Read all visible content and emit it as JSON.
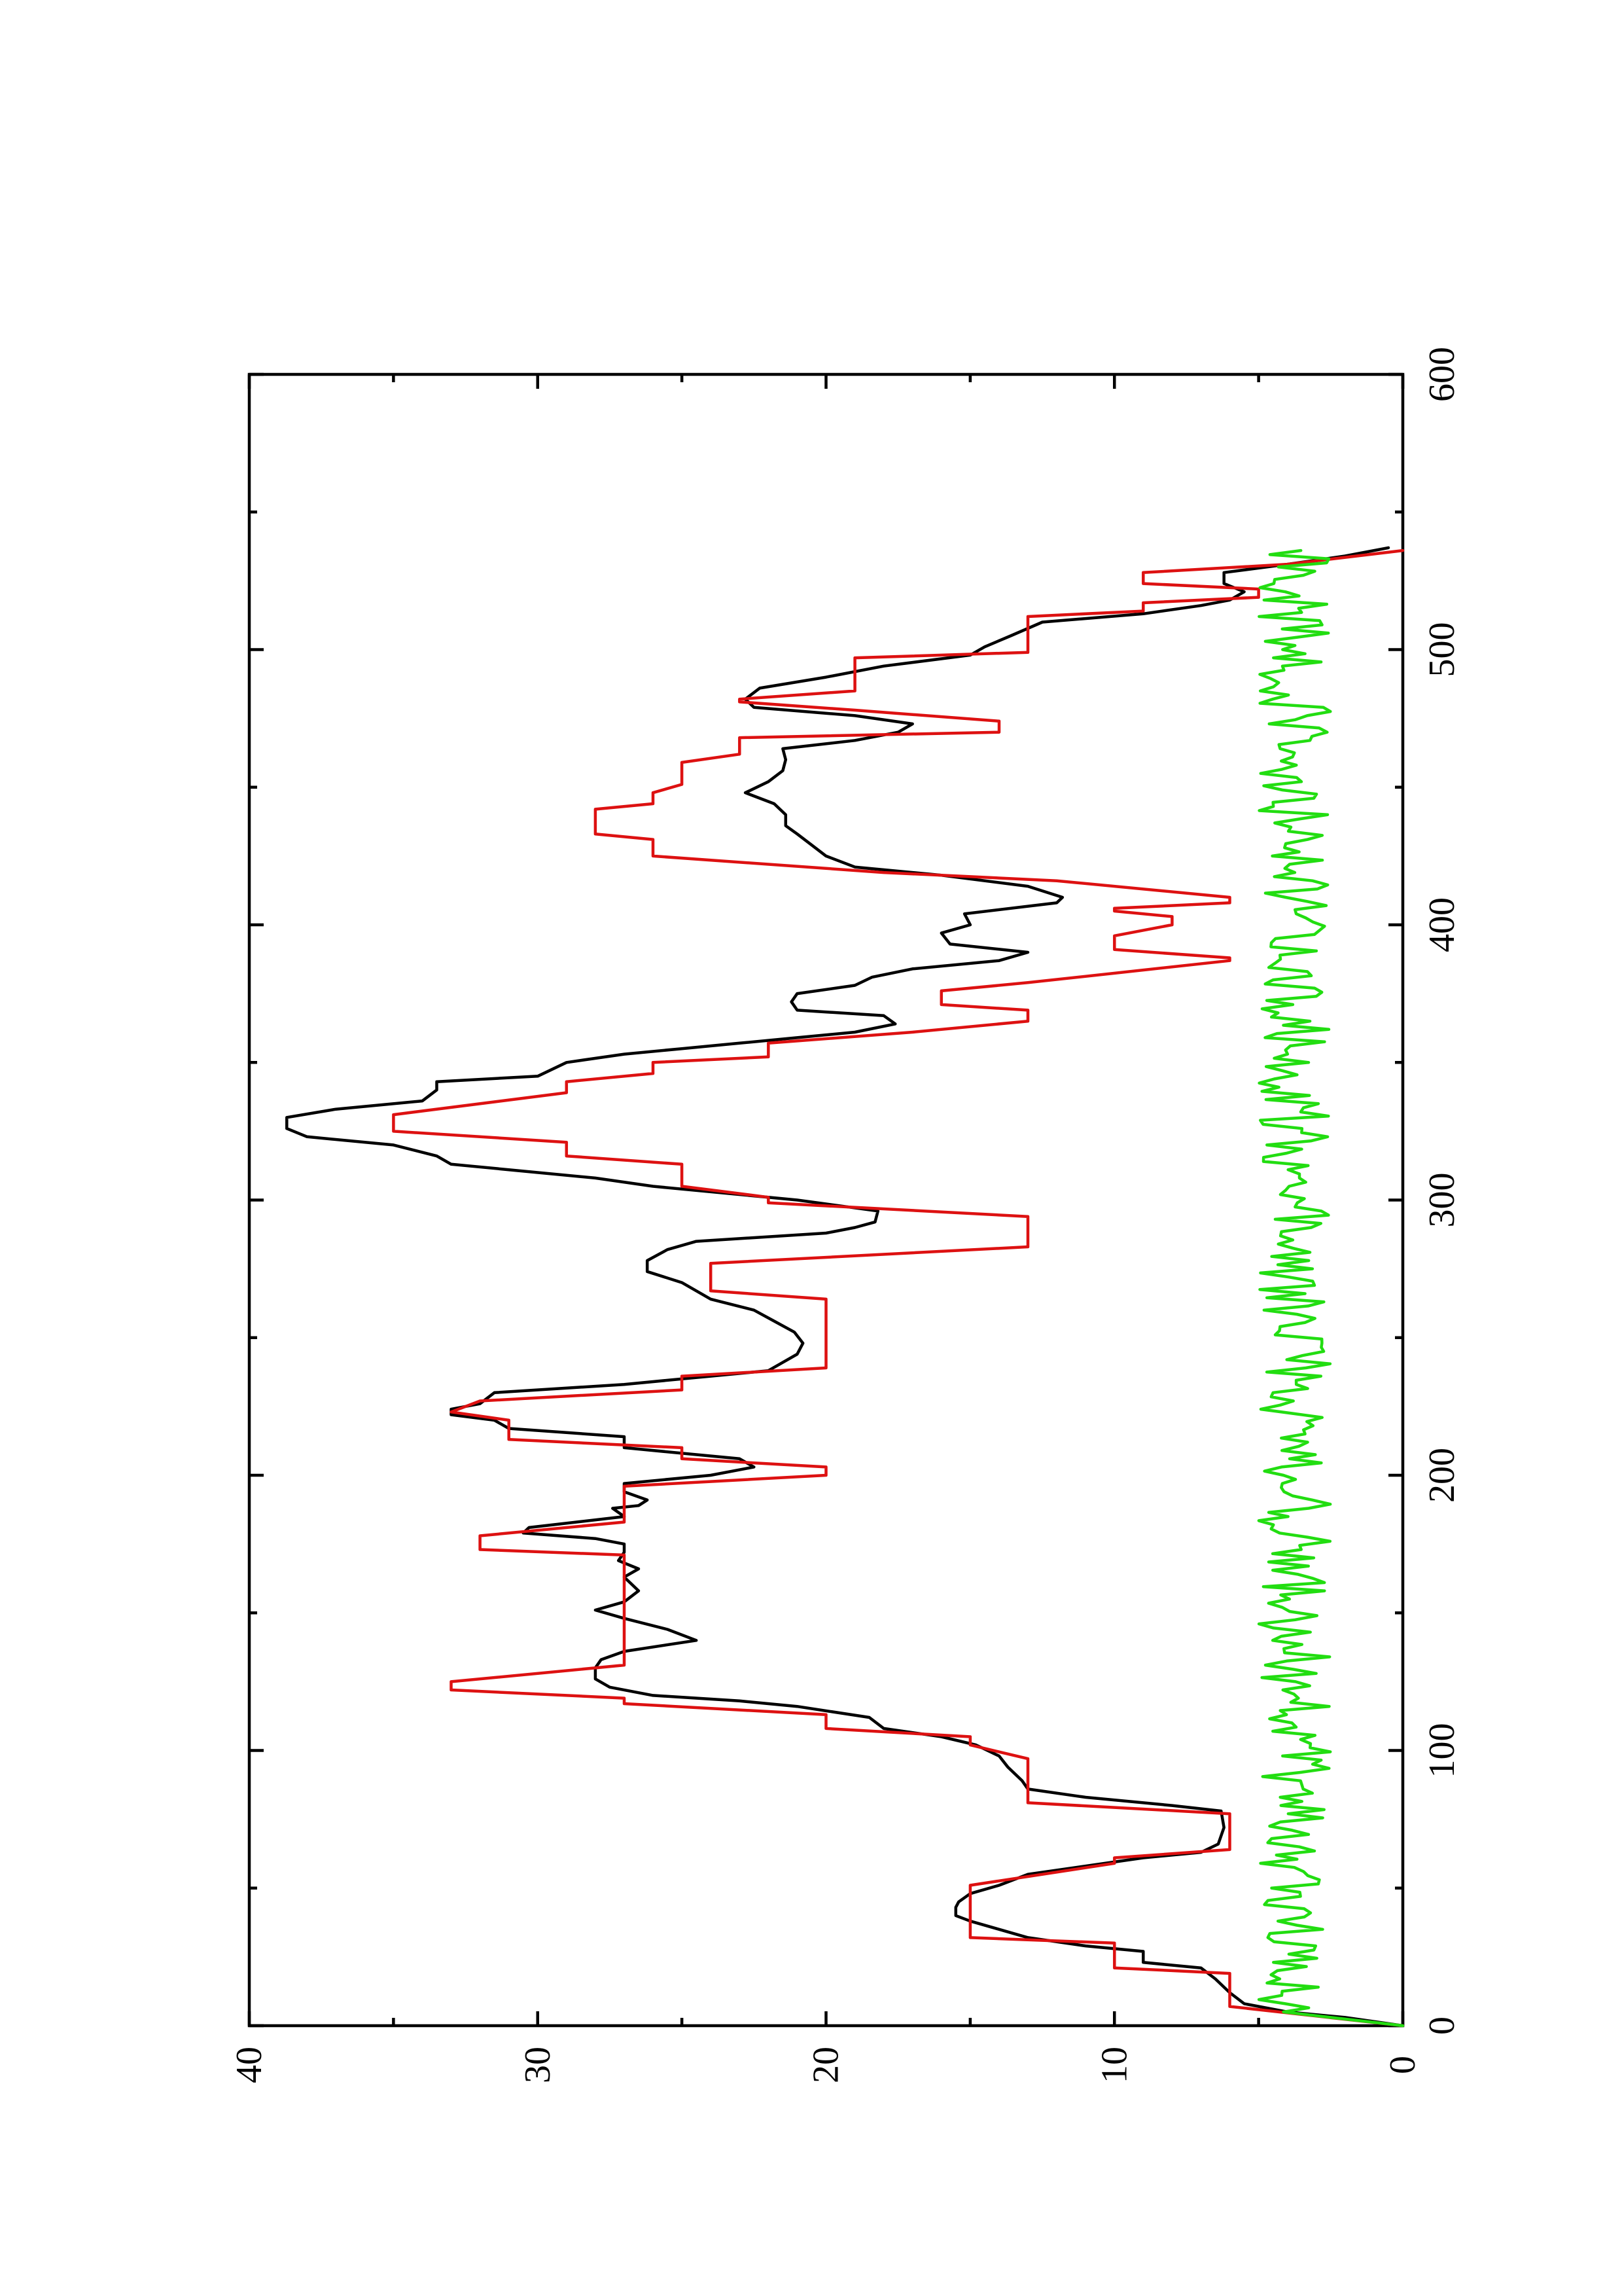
{
  "chart_data": {
    "type": "line",
    "orientation": "rotated-90-ccw",
    "xlim": [
      0,
      600
    ],
    "ylim": [
      0,
      40
    ],
    "x_ticks": [
      "0",
      "100",
      "200",
      "300",
      "400",
      "500",
      "600"
    ],
    "x_minor_ticks": [
      50,
      150,
      250,
      350,
      450,
      550
    ],
    "y_ticks": [
      "0",
      "10",
      "20",
      "30",
      "40"
    ],
    "y_minor_ticks": [
      5,
      15,
      25,
      35
    ],
    "grid": false,
    "series": [
      {
        "color": "#000000",
        "points": [
          [
            0,
            0
          ],
          [
            3,
            2
          ],
          [
            5,
            4
          ],
          [
            8,
            5.5
          ],
          [
            12,
            6
          ],
          [
            17,
            6.5
          ],
          [
            21,
            7
          ],
          [
            23,
            9
          ],
          [
            27,
            9
          ],
          [
            29,
            11
          ],
          [
            32,
            13
          ],
          [
            35,
            14
          ],
          [
            38,
            15
          ],
          [
            40,
            15.5
          ],
          [
            43,
            15.5
          ],
          [
            45,
            15.4
          ],
          [
            48,
            15
          ],
          [
            51,
            14
          ],
          [
            55,
            13
          ],
          [
            58,
            11
          ],
          [
            61,
            9
          ],
          [
            63,
            7
          ],
          [
            66,
            6.4
          ],
          [
            72,
            6.2
          ],
          [
            78,
            6.3
          ],
          [
            80,
            8
          ],
          [
            83,
            11
          ],
          [
            86,
            13
          ],
          [
            89,
            13.2
          ],
          [
            94,
            13.7
          ],
          [
            98,
            14
          ],
          [
            102,
            14.8
          ],
          [
            105,
            16
          ],
          [
            108,
            18
          ],
          [
            112,
            18.5
          ],
          [
            116,
            21
          ],
          [
            118,
            23
          ],
          [
            120,
            26
          ],
          [
            123,
            27.5
          ],
          [
            126,
            28
          ],
          [
            130,
            28
          ],
          [
            133,
            27.8
          ],
          [
            136,
            27
          ],
          [
            140,
            24.5
          ],
          [
            144,
            25.5
          ],
          [
            148,
            27
          ],
          [
            151,
            28
          ],
          [
            154,
            27
          ],
          [
            158,
            26.5
          ],
          [
            163,
            27
          ],
          [
            166,
            26.5
          ],
          [
            169,
            27.2
          ],
          [
            172,
            27
          ],
          [
            175,
            27
          ],
          [
            177,
            28
          ],
          [
            179,
            30.5
          ],
          [
            181,
            30.3
          ],
          [
            185,
            27
          ],
          [
            188,
            27.4
          ],
          [
            189,
            26.5
          ],
          [
            191,
            26.2
          ],
          [
            194,
            27
          ],
          [
            197,
            27
          ],
          [
            200,
            24
          ],
          [
            203,
            22.5
          ],
          [
            206,
            23
          ],
          [
            210,
            27
          ],
          [
            214,
            27
          ],
          [
            217,
            31
          ],
          [
            220,
            31.5
          ],
          [
            222,
            33
          ],
          [
            224,
            33
          ],
          [
            226,
            32
          ],
          [
            230,
            31.5
          ],
          [
            233,
            27
          ],
          [
            236,
            24
          ],
          [
            238,
            22
          ],
          [
            241,
            21.5
          ],
          [
            244,
            21
          ],
          [
            248,
            20.8
          ],
          [
            252,
            21.1
          ],
          [
            256,
            21.8
          ],
          [
            260,
            22.5
          ],
          [
            264,
            24
          ],
          [
            270,
            25
          ],
          [
            274,
            26.2
          ],
          [
            278,
            26.2
          ],
          [
            282,
            25.5
          ],
          [
            285,
            24.5
          ],
          [
            288,
            20
          ],
          [
            290,
            19
          ],
          [
            292,
            18.3
          ],
          [
            296,
            18.2
          ],
          [
            300,
            21
          ],
          [
            305,
            26
          ],
          [
            308,
            28
          ],
          [
            311,
            31
          ],
          [
            313,
            33
          ],
          [
            316,
            33.5
          ],
          [
            320,
            35
          ],
          [
            323,
            38
          ],
          [
            326,
            38.7
          ],
          [
            330,
            38.7
          ],
          [
            333,
            37
          ],
          [
            336,
            34
          ],
          [
            340,
            33.5
          ],
          [
            343,
            33.5
          ],
          [
            345,
            30
          ],
          [
            350,
            29
          ],
          [
            353,
            27
          ],
          [
            355,
            25
          ],
          [
            357,
            23
          ],
          [
            359,
            21
          ],
          [
            361,
            19
          ],
          [
            364,
            17.6
          ],
          [
            367,
            18
          ],
          [
            369,
            21
          ],
          [
            372,
            21.2
          ],
          [
            375,
            21
          ],
          [
            378,
            19
          ],
          [
            381,
            18.4
          ],
          [
            384,
            17
          ],
          [
            387,
            14
          ],
          [
            390,
            13
          ],
          [
            393,
            15.7
          ],
          [
            397,
            16
          ],
          [
            400,
            15
          ],
          [
            404,
            15.2
          ],
          [
            408,
            12
          ],
          [
            410,
            11.8
          ],
          [
            414,
            13
          ],
          [
            418,
            16
          ],
          [
            421,
            19
          ],
          [
            425,
            20
          ],
          [
            429,
            20.5
          ],
          [
            433,
            21
          ],
          [
            436,
            21.4
          ],
          [
            440,
            21.4
          ],
          [
            444,
            21.8
          ],
          [
            448,
            22.8
          ],
          [
            452,
            22
          ],
          [
            456,
            21.5
          ],
          [
            460,
            21.4
          ],
          [
            464,
            21.5
          ],
          [
            467,
            19
          ],
          [
            470,
            17.5
          ],
          [
            473,
            17
          ],
          [
            476,
            19
          ],
          [
            479,
            22.5
          ],
          [
            482,
            22.8
          ],
          [
            486,
            22.3
          ],
          [
            490,
            20
          ],
          [
            494,
            18
          ],
          [
            498,
            15
          ],
          [
            501,
            14.5
          ],
          [
            505,
            13.6
          ],
          [
            510,
            12.5
          ],
          [
            513,
            9
          ],
          [
            516,
            7
          ],
          [
            518,
            6
          ],
          [
            521,
            5.5
          ],
          [
            524,
            6.2
          ],
          [
            528,
            6.2
          ],
          [
            531,
            4
          ],
          [
            534,
            2
          ],
          [
            537,
            0.5
          ]
        ]
      },
      {
        "color": "#dd1111",
        "points": [
          [
            0,
            0
          ],
          [
            7,
            6
          ],
          [
            19,
            6
          ],
          [
            21,
            10
          ],
          [
            30,
            10
          ],
          [
            32,
            15
          ],
          [
            51,
            15
          ],
          [
            59,
            10
          ],
          [
            61,
            10
          ],
          [
            64,
            6
          ],
          [
            77,
            6
          ],
          [
            81,
            13
          ],
          [
            97,
            13
          ],
          [
            102,
            15
          ],
          [
            105,
            15
          ],
          [
            108,
            20
          ],
          [
            113,
            20
          ],
          [
            117,
            27
          ],
          [
            119,
            27
          ],
          [
            122,
            33
          ],
          [
            125,
            33
          ],
          [
            131,
            27
          ],
          [
            171,
            27
          ],
          [
            173,
            32
          ],
          [
            178,
            32
          ],
          [
            183,
            27
          ],
          [
            189,
            27
          ],
          [
            192,
            27
          ],
          [
            196,
            27
          ],
          [
            200,
            20
          ],
          [
            203,
            20
          ],
          [
            206,
            25
          ],
          [
            210,
            25
          ],
          [
            213,
            31
          ],
          [
            220,
            31
          ],
          [
            223,
            33
          ],
          [
            227,
            32
          ],
          [
            231,
            25
          ],
          [
            236,
            25
          ],
          [
            239,
            20
          ],
          [
            264,
            20
          ],
          [
            267,
            24
          ],
          [
            277,
            24
          ],
          [
            283,
            13
          ],
          [
            294,
            13
          ],
          [
            299,
            22
          ],
          [
            301,
            22
          ],
          [
            305,
            25
          ],
          [
            313,
            25
          ],
          [
            316,
            29
          ],
          [
            321,
            29
          ],
          [
            325,
            35
          ],
          [
            331,
            35
          ],
          [
            339,
            29
          ],
          [
            343,
            29
          ],
          [
            346,
            26
          ],
          [
            350,
            26
          ],
          [
            352,
            22
          ],
          [
            357,
            22
          ],
          [
            361,
            17
          ],
          [
            365,
            13
          ],
          [
            369,
            13
          ],
          [
            371,
            16
          ],
          [
            376,
            16
          ],
          [
            379,
            13
          ],
          [
            387,
            6
          ],
          [
            388,
            6
          ],
          [
            391,
            10
          ],
          [
            396,
            10
          ],
          [
            400,
            8
          ],
          [
            403,
            8
          ],
          [
            405,
            10
          ],
          [
            406,
            10
          ],
          [
            408,
            6
          ],
          [
            410,
            6
          ],
          [
            416,
            12
          ],
          [
            419,
            18
          ],
          [
            422,
            22
          ],
          [
            425,
            26
          ],
          [
            431,
            26
          ],
          [
            433,
            28
          ],
          [
            442,
            28
          ],
          [
            444,
            26
          ],
          [
            448,
            26
          ],
          [
            451,
            25
          ],
          [
            459,
            25
          ],
          [
            462,
            23
          ],
          [
            468,
            23
          ],
          [
            470,
            14
          ],
          [
            474,
            14
          ],
          [
            478,
            19
          ],
          [
            481,
            23
          ],
          [
            482,
            23
          ],
          [
            485,
            19
          ],
          [
            497,
            19
          ],
          [
            499,
            13
          ],
          [
            512,
            13
          ],
          [
            514,
            9
          ],
          [
            517,
            9
          ],
          [
            519,
            5
          ],
          [
            522,
            5
          ],
          [
            524,
            9
          ],
          [
            528,
            9
          ],
          [
            531,
            4
          ],
          [
            536,
            0
          ]
        ]
      },
      {
        "color": "#22dd11",
        "band": [
          2.5,
          5
        ],
        "x_range": [
          5,
          536
        ],
        "description_note": ""
      }
    ]
  }
}
